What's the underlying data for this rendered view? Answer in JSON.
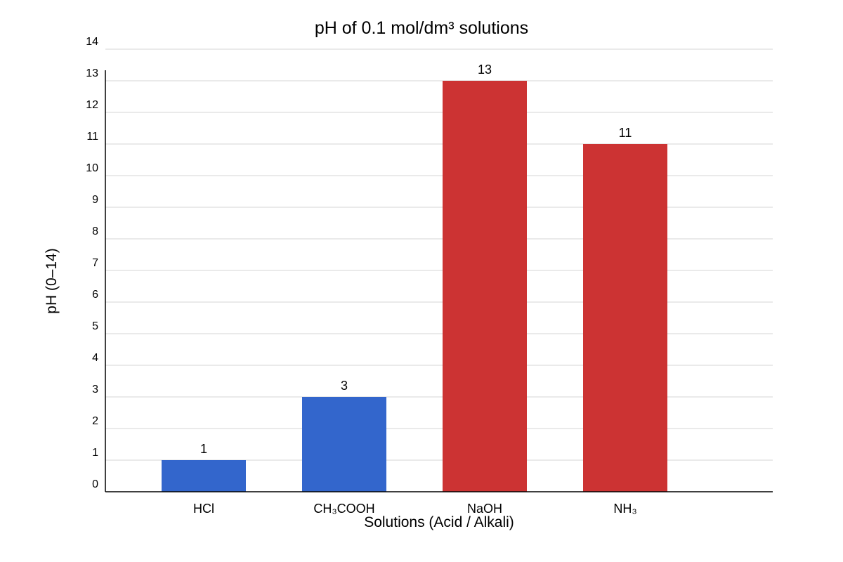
{
  "chart_data": {
    "type": "bar",
    "title": "pH of 0.1 mol/dm³ solutions",
    "xlabel": "Solutions (Acid / Alkali)",
    "ylabel": "pH (0–14)",
    "categories": [
      "HCl",
      "CH₃COOH",
      "NaOH",
      "NH₃"
    ],
    "values": [
      1,
      3,
      13,
      11
    ],
    "data_labels": [
      "1",
      "3",
      "13",
      "11"
    ],
    "bar_colors": [
      "#3366cc",
      "#3366cc",
      "#cc3333",
      "#cc3333"
    ],
    "ylim": [
      0,
      14
    ],
    "yticks": [
      0,
      1,
      2,
      3,
      4,
      5,
      6,
      7,
      8,
      9,
      10,
      11,
      12,
      13,
      14
    ],
    "grid": true,
    "legend": "none"
  }
}
